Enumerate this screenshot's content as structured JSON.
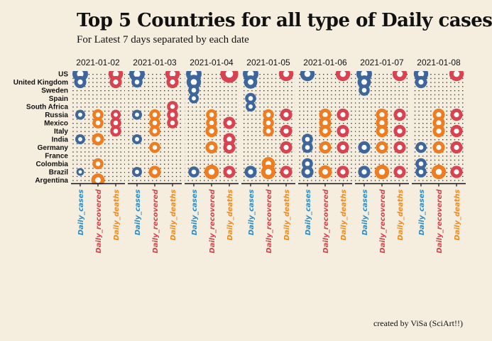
{
  "title": "Top 5 Countries for all type of Daily cases",
  "subtitle": "For Latest 7 days separated by each date",
  "caption": "created by ViSa (SciArt!!)",
  "chart_data": {
    "type": "scatter",
    "note": "faceted bubble chart, marker size = relative daily count",
    "countries": [
      "US",
      "United Kingdom",
      "Sweden",
      "Spain",
      "South Africa",
      "Russia",
      "Mexico",
      "Italy",
      "India",
      "Germany",
      "France",
      "Colombia",
      "Brazil",
      "Argentina"
    ],
    "measures": [
      "Daily_cases",
      "Daily_recovered",
      "Daily_deaths"
    ],
    "measure_label_colors": {
      "Daily_cases": "#2b8cc4",
      "Daily_recovered": "#d9434f",
      "Daily_deaths": "#f08a24"
    },
    "marker_colors": {
      "Daily_cases": "#3d679c",
      "Daily_recovered": "#ee7d22",
      "Daily_deaths": "#d9434f"
    },
    "panels": [
      {
        "date": "2021-01-02",
        "Daily_cases": [
          [
            "US",
            10
          ],
          [
            "United Kingdom",
            7
          ],
          [
            "Russia",
            5
          ],
          [
            "India",
            5
          ],
          [
            "Brazil",
            3
          ]
        ],
        "Daily_recovered": [
          [
            "Russia",
            6
          ],
          [
            "Mexico",
            6
          ],
          [
            "India",
            7
          ],
          [
            "Colombia",
            6
          ],
          [
            "Argentina",
            8
          ]
        ],
        "Daily_deaths": [
          [
            "US",
            9
          ],
          [
            "United Kingdom",
            7
          ],
          [
            "Mexico",
            6
          ],
          [
            "Italy",
            6
          ],
          [
            "Russia",
            5
          ]
        ]
      },
      {
        "date": "2021-01-03",
        "Daily_cases": [
          [
            "US",
            10
          ],
          [
            "United Kingdom",
            6
          ],
          [
            "Russia",
            5
          ],
          [
            "India",
            5
          ],
          [
            "Brazil",
            5
          ]
        ],
        "Daily_recovered": [
          [
            "Russia",
            6
          ],
          [
            "Mexico",
            6
          ],
          [
            "Italy",
            6
          ],
          [
            "Germany",
            6
          ],
          [
            "Brazil",
            7
          ]
        ],
        "Daily_deaths": [
          [
            "US",
            9
          ],
          [
            "United Kingdom",
            7
          ],
          [
            "South Africa",
            6
          ],
          [
            "Russia",
            6
          ],
          [
            "Mexico",
            6
          ]
        ]
      },
      {
        "date": "2021-01-04",
        "Daily_cases": [
          [
            "US",
            10
          ],
          [
            "United Kingdom",
            9
          ],
          [
            "Sweden",
            6
          ],
          [
            "Spain",
            5
          ],
          [
            "Brazil",
            6
          ]
        ],
        "Daily_recovered": [
          [
            "Russia",
            6
          ],
          [
            "Mexico",
            6
          ],
          [
            "Italy",
            7
          ],
          [
            "Germany",
            7
          ],
          [
            "Brazil",
            9
          ]
        ],
        "Daily_deaths": [
          [
            "US",
            12
          ],
          [
            "Mexico",
            7
          ],
          [
            "India",
            7
          ],
          [
            "Germany",
            7
          ],
          [
            "Brazil",
            7
          ]
        ]
      },
      {
        "date": "2021-01-05",
        "Daily_cases": [
          [
            "US",
            10
          ],
          [
            "United Kingdom",
            8
          ],
          [
            "Spain",
            6
          ],
          [
            "South Africa",
            5
          ],
          [
            "Brazil",
            7
          ]
        ],
        "Daily_recovered": [
          [
            "Russia",
            6
          ],
          [
            "Mexico",
            6
          ],
          [
            "Italy",
            6
          ],
          [
            "Colombia",
            8
          ],
          [
            "Brazil",
            9
          ]
        ],
        "Daily_deaths": [
          [
            "US",
            9
          ],
          [
            "Russia",
            7
          ],
          [
            "Italy",
            7
          ],
          [
            "Germany",
            7
          ],
          [
            "Brazil",
            7
          ]
        ]
      },
      {
        "date": "2021-01-06",
        "Daily_cases": [
          [
            "US",
            9
          ],
          [
            "India",
            6
          ],
          [
            "Germany",
            6
          ],
          [
            "Colombia",
            6
          ],
          [
            "Brazil",
            7
          ]
        ],
        "Daily_recovered": [
          [
            "Russia",
            7
          ],
          [
            "Mexico",
            7
          ],
          [
            "Italy",
            7
          ],
          [
            "Germany",
            7
          ],
          [
            "Brazil",
            8
          ]
        ],
        "Daily_deaths": [
          [
            "US",
            9
          ],
          [
            "Russia",
            7
          ],
          [
            "Italy",
            7
          ],
          [
            "Germany",
            7
          ],
          [
            "Brazil",
            7
          ]
        ]
      },
      {
        "date": "2021-01-07",
        "Daily_cases": [
          [
            "US",
            10
          ],
          [
            "United Kingdom",
            8
          ],
          [
            "Sweden",
            6
          ],
          [
            "Germany",
            7
          ],
          [
            "Brazil",
            7
          ]
        ],
        "Daily_recovered": [
          [
            "Russia",
            7
          ],
          [
            "Mexico",
            7
          ],
          [
            "Italy",
            7
          ],
          [
            "Germany",
            7
          ],
          [
            "Brazil",
            9
          ]
        ],
        "Daily_deaths": [
          [
            "US",
            9
          ],
          [
            "Russia",
            7
          ],
          [
            "Italy",
            7
          ],
          [
            "Germany",
            7
          ],
          [
            "Brazil",
            7
          ]
        ]
      },
      {
        "date": "2021-01-08",
        "Daily_cases": [
          [
            "US",
            9
          ],
          [
            "United Kingdom",
            7
          ],
          [
            "Germany",
            6
          ],
          [
            "Colombia",
            6
          ],
          [
            "Brazil",
            6
          ]
        ],
        "Daily_recovered": [
          [
            "Russia",
            7
          ],
          [
            "Mexico",
            7
          ],
          [
            "Italy",
            7
          ],
          [
            "Germany",
            7
          ],
          [
            "Brazil",
            9
          ]
        ],
        "Daily_deaths": [
          [
            "US",
            9
          ],
          [
            "Russia",
            7
          ],
          [
            "Italy",
            7
          ],
          [
            "Germany",
            7
          ],
          [
            "Brazil",
            7
          ]
        ]
      }
    ]
  }
}
